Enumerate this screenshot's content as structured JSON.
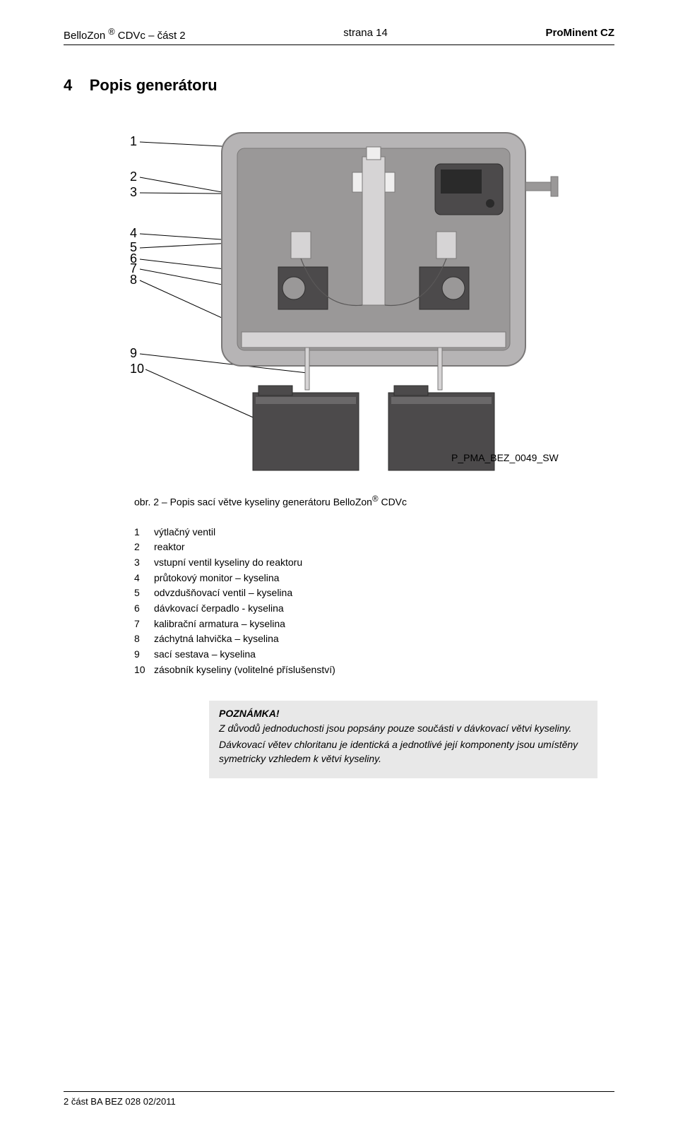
{
  "header": {
    "left_html": "BelloZon <sup>®</sup> CDVc – část 2",
    "center": "strana 14",
    "right": "ProMinent CZ"
  },
  "section": {
    "number": "4",
    "title": "Popis generátoru"
  },
  "figure": {
    "caption_html": "obr. 2 – Popis sací větve kyseliny generátoru BelloZon<sup>®</sup> CDVc",
    "code_label": "P_PMA_BEZ_0049_SW",
    "labels": [
      "1",
      "2",
      "3",
      "4",
      "5",
      "6",
      "7",
      "8",
      "9",
      "10"
    ],
    "main_panel_fill": "#b6b4b5",
    "main_panel_stroke": "#7a7878",
    "dark_fill": "#4c4a4b",
    "mid_fill": "#9a9898",
    "light_fill": "#d6d4d5",
    "line_color": "#5a5858"
  },
  "parts": [
    {
      "n": "1",
      "t": "výtlačný ventil"
    },
    {
      "n": "2",
      "t": "reaktor"
    },
    {
      "n": "3",
      "t": "vstupní ventil kyseliny do reaktoru"
    },
    {
      "n": "4",
      "t": "průtokový monitor – kyselina"
    },
    {
      "n": "5",
      "t": "odvzdušňovací ventil – kyselina"
    },
    {
      "n": "6",
      "t": "dávkovací čerpadlo - kyselina"
    },
    {
      "n": "7",
      "t": "kalibrační armatura – kyselina"
    },
    {
      "n": "8",
      "t": "záchytná lahvička – kyselina"
    },
    {
      "n": "9",
      "t": "sací sestava – kyselina"
    },
    {
      "n": "10",
      "t": "zásobník kyseliny (volitelné příslušenství)"
    }
  ],
  "note": {
    "title": "POZNÁMKA!",
    "p1": "Z důvodů jednoduchosti jsou popsány pouze součásti v dávkovací větvi kyseliny.",
    "p2": "Dávkovací větev chloritanu je identická a jednotlivé její komponenty jsou umístěny symetricky vzhledem k větvi kyseliny."
  },
  "footer": "2 část BA BEZ 028 02/2011"
}
